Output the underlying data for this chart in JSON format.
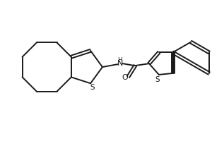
{
  "bg_color": "#ffffff",
  "line_color": "#1a1a1a",
  "line_width": 1.4,
  "figsize": [
    3.0,
    2.0
  ],
  "dpi": 100,
  "atoms": {
    "S_left": "S",
    "S_right": "S",
    "N": "N",
    "H": "H",
    "O": "O"
  }
}
